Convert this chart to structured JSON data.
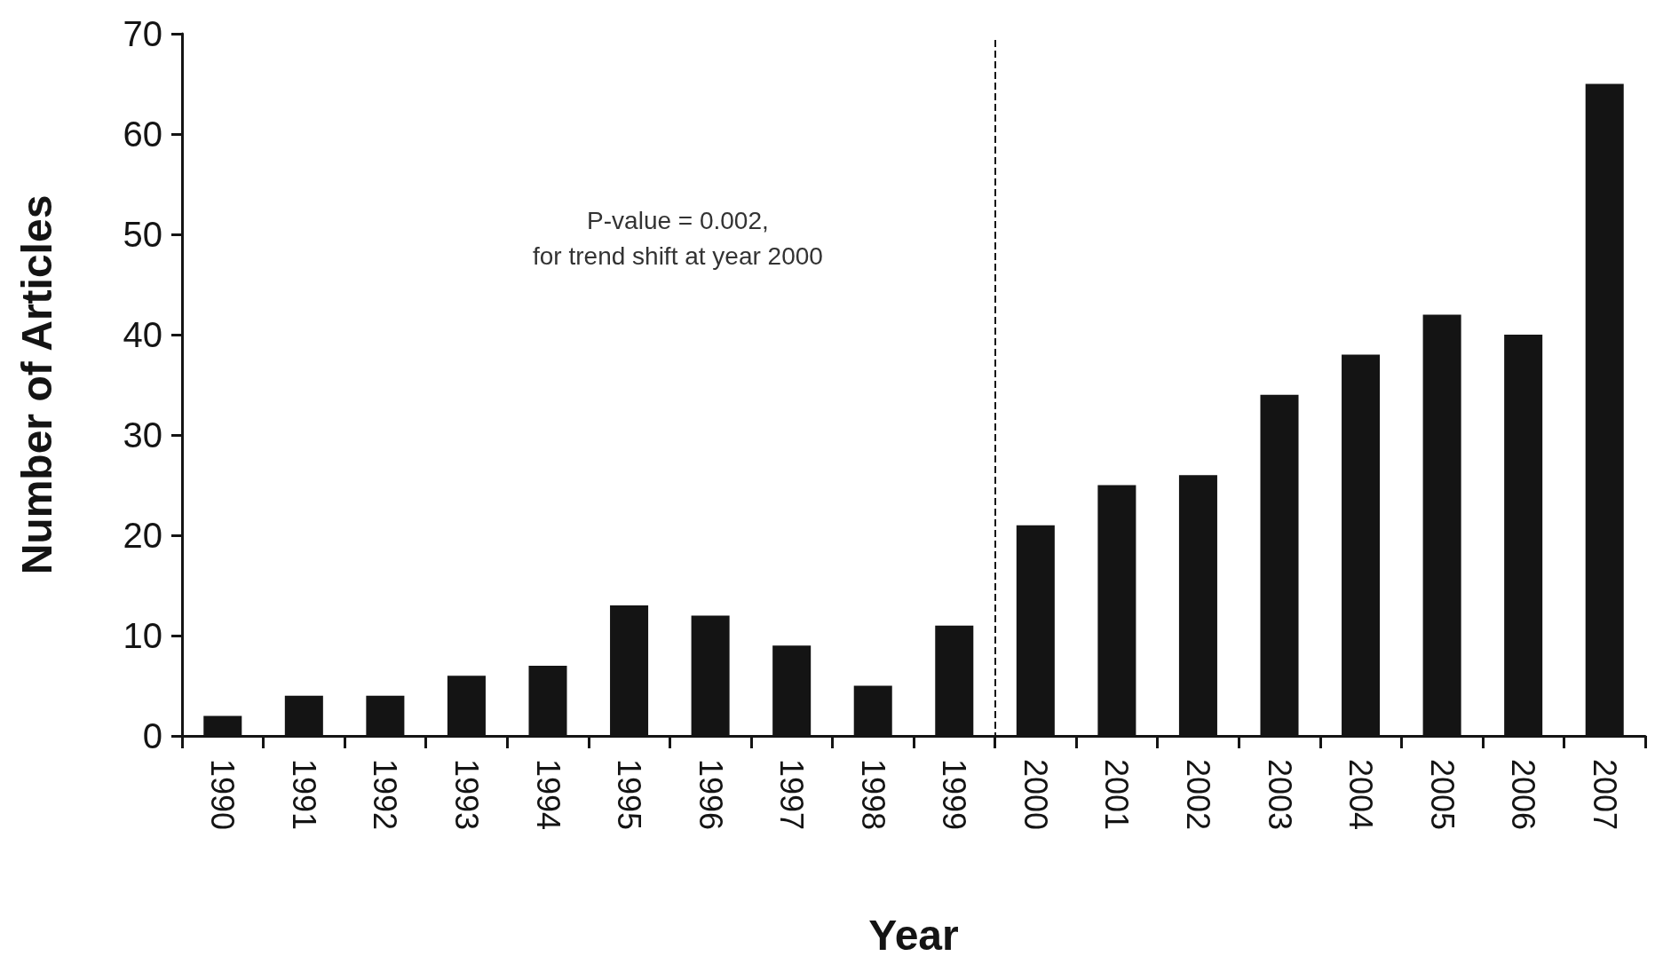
{
  "chart_data": {
    "type": "bar",
    "xlabel": "Year",
    "ylabel": "Number of Articles",
    "categories": [
      "1990",
      "1991",
      "1992",
      "1993",
      "1994",
      "1995",
      "1996",
      "1997",
      "1998",
      "1999",
      "2000",
      "2001",
      "2002",
      "2003",
      "2004",
      "2005",
      "2006",
      "2007"
    ],
    "values": [
      2,
      4,
      4,
      6,
      7,
      13,
      12,
      9,
      5,
      11,
      21,
      25,
      26,
      34,
      38,
      42,
      40,
      65
    ],
    "color": "#141414",
    "ylim": [
      0,
      70
    ],
    "yticks": [
      0,
      10,
      20,
      30,
      40,
      50,
      60,
      70
    ],
    "annotations": [
      "P-value = 0.002,\nfor trend shift at year 2000"
    ],
    "grid": false
  }
}
